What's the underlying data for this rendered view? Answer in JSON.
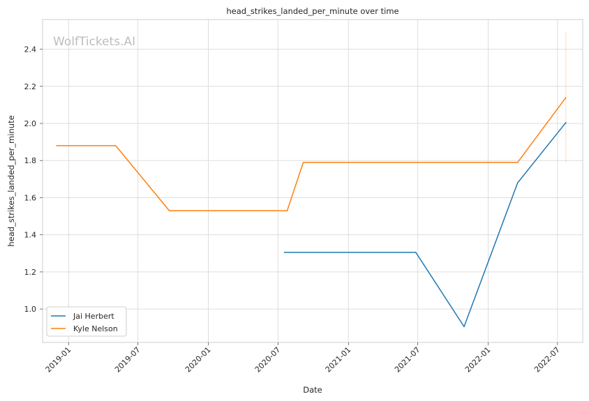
{
  "chart_data": {
    "type": "line",
    "title": "head_strikes_landed_per_minute over time",
    "xlabel": "Date",
    "ylabel": "head_strikes_landed_per_minute",
    "watermark": "WolfTickets.AI",
    "grid": true,
    "legend_placement": "lower-left",
    "xlim": [
      "2018-10-25",
      "2022-09-05"
    ],
    "ylim": [
      0.82,
      2.56
    ],
    "x_ticks": [
      "2019-01",
      "2019-07",
      "2020-01",
      "2020-07",
      "2021-01",
      "2021-07",
      "2022-01",
      "2022-07"
    ],
    "y_ticks": [
      1.0,
      1.2,
      1.4,
      1.6,
      1.8,
      2.0,
      2.2,
      2.4
    ],
    "y_tick_labels": [
      "1.0",
      "1.2",
      "1.4",
      "1.6",
      "1.8",
      "2.0",
      "2.2",
      "2.4"
    ],
    "series": [
      {
        "name": "Jai Herbert",
        "color": "#1f77b4",
        "x": [
          "2020-07-18",
          "2021-06-26",
          "2021-10-30",
          "2022-03-19",
          "2022-07-23"
        ],
        "values": [
          1.305,
          1.305,
          0.905,
          1.68,
          2.005
        ]
      },
      {
        "name": "Kyle Nelson",
        "color": "#ff7f0e",
        "x": [
          "2018-12-01",
          "2019-05-04",
          "2019-09-21",
          "2020-07-25",
          "2020-09-05",
          "2022-03-19",
          "2022-07-23"
        ],
        "values": [
          1.88,
          1.88,
          1.53,
          1.53,
          1.79,
          1.79,
          2.14
        ]
      }
    ],
    "error_bar": {
      "color": "#ff7f0e",
      "x": "2022-07-23",
      "low": 1.79,
      "high": 2.49
    }
  }
}
